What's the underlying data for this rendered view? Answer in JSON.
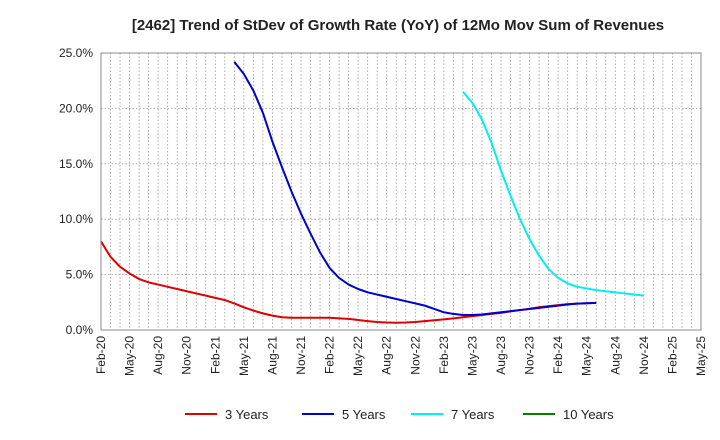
{
  "chart_data": {
    "type": "line",
    "title": "[2462]  Trend of StDev of Growth Rate (YoY) of 12Mo Mov Sum of Revenues",
    "xlabel": "",
    "ylabel": "",
    "ylim": [
      0,
      25
    ],
    "grid": true,
    "legend_position": "bottom",
    "x_tick_labels": [
      "Feb-20",
      "May-20",
      "Aug-20",
      "Nov-20",
      "Feb-21",
      "May-21",
      "Aug-21",
      "Nov-21",
      "Feb-22",
      "May-22",
      "Aug-22",
      "Nov-22",
      "Feb-23",
      "May-23",
      "Aug-23",
      "Nov-23",
      "Feb-24",
      "May-24",
      "Aug-24",
      "Nov-24",
      "Feb-25",
      "May-25"
    ],
    "y_tick_labels": [
      "0.0%",
      "5.0%",
      "10.0%",
      "15.0%",
      "20.0%",
      "25.0%"
    ],
    "y_ticks": [
      0,
      5,
      10,
      15,
      20,
      25
    ],
    "x_start": "Feb-20",
    "x_months": 63,
    "series": [
      {
        "name": "3 Years",
        "color": "#dd0000",
        "start_month_index": 0,
        "values": [
          8.0,
          6.6,
          5.7,
          5.1,
          4.6,
          4.3,
          4.1,
          3.9,
          3.7,
          3.5,
          3.3,
          3.1,
          2.9,
          2.7,
          2.4,
          2.05,
          1.75,
          1.5,
          1.3,
          1.15,
          1.1,
          1.1,
          1.1,
          1.1,
          1.1,
          1.05,
          1.0,
          0.9,
          0.8,
          0.72,
          0.68,
          0.66,
          0.68,
          0.72,
          0.8,
          0.88,
          0.96,
          1.05,
          1.15,
          1.25,
          1.35,
          1.45,
          1.55,
          1.68,
          1.8,
          1.92,
          2.05,
          2.15,
          2.25,
          2.33,
          2.38,
          2.42,
          2.45
        ]
      },
      {
        "name": "5 Years",
        "color": "#0000cc",
        "start_month_index": 14,
        "values": [
          24.2,
          23.1,
          21.6,
          19.6,
          17.0,
          14.7,
          12.5,
          10.5,
          8.7,
          7.0,
          5.6,
          4.7,
          4.1,
          3.7,
          3.4,
          3.2,
          3.0,
          2.8,
          2.6,
          2.4,
          2.2,
          1.9,
          1.6,
          1.45,
          1.35,
          1.35,
          1.4,
          1.5,
          1.6,
          1.7,
          1.8,
          1.9,
          2.0,
          2.1,
          2.2,
          2.3,
          2.38,
          2.42,
          2.45
        ]
      },
      {
        "name": "7 Years",
        "color": "#00eeee",
        "start_month_index": 38,
        "values": [
          21.5,
          20.5,
          19.0,
          16.9,
          14.4,
          12.1,
          10.0,
          8.2,
          6.7,
          5.5,
          4.7,
          4.2,
          3.9,
          3.75,
          3.6,
          3.5,
          3.4,
          3.3,
          3.2,
          3.1
        ]
      },
      {
        "name": "10 Years",
        "color": "#008000",
        "start_month_index": 0,
        "values": []
      }
    ]
  }
}
